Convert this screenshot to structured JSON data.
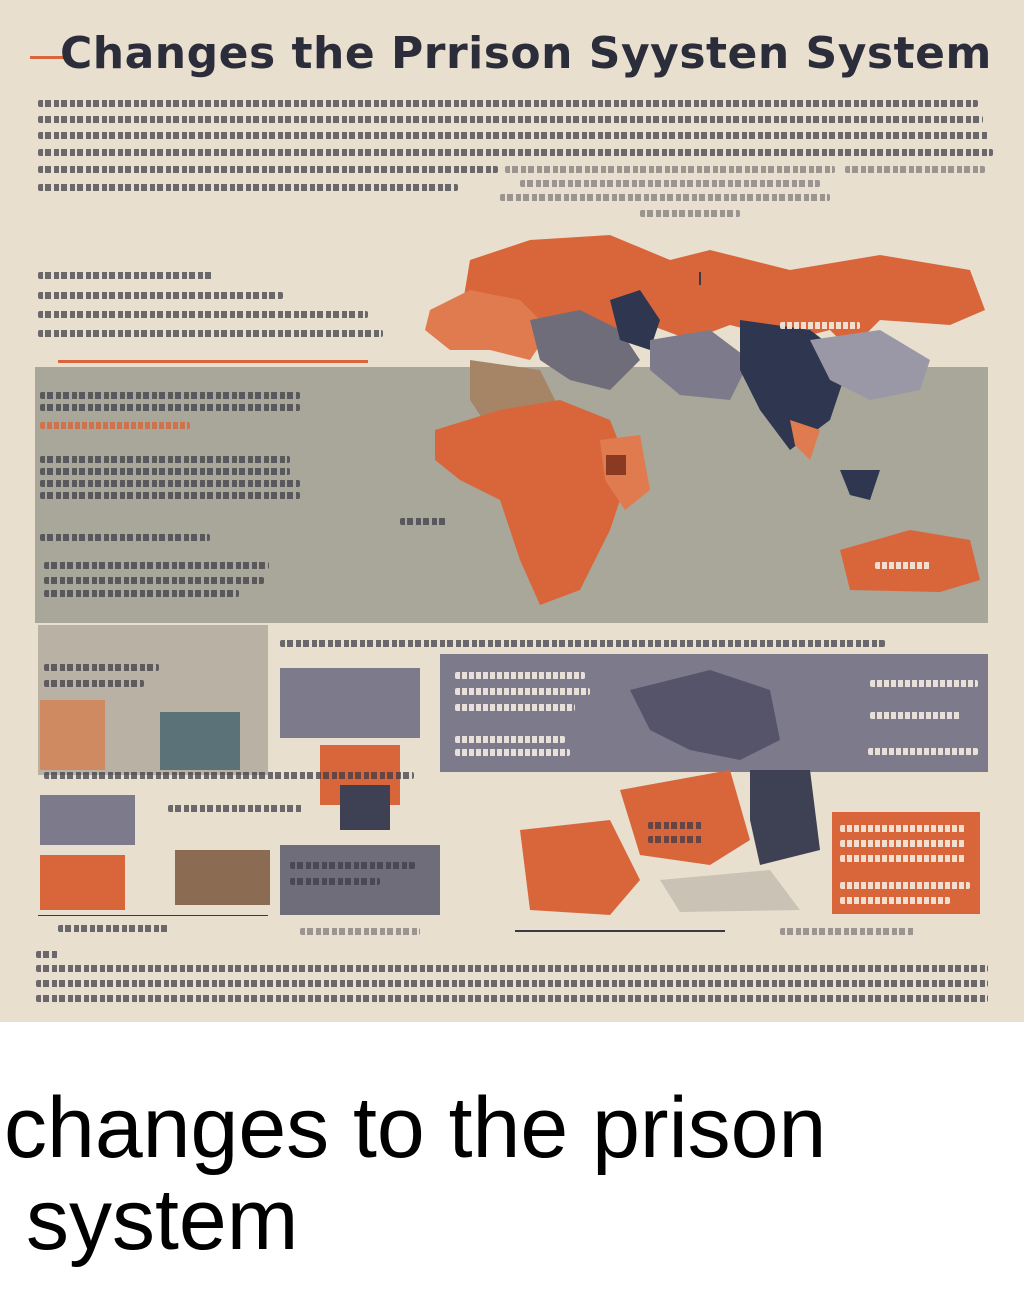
{
  "poster": {
    "title": "Changes the Prrison Syysten System",
    "colors": {
      "background": "#e9dfcf",
      "accent_orange": "#d9663a",
      "navy": "#2e3650",
      "slate": "#7d7a8c",
      "gray_band": "#a9a69a",
      "text_dark": "#2b2d3a"
    }
  },
  "caption": {
    "line1": "changes to the prison",
    "line2": "system"
  }
}
